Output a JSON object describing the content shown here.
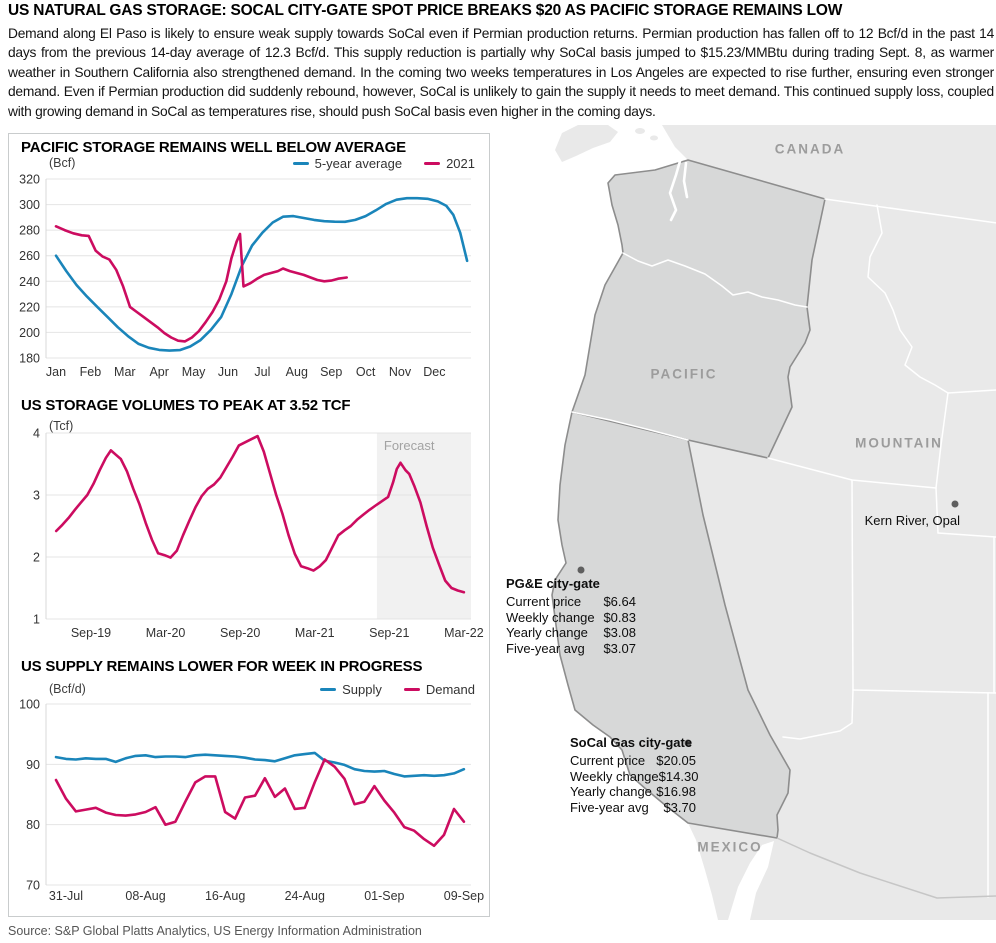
{
  "header": {
    "title": "US NATURAL GAS STORAGE: SOCAL CITY-GATE SPOT PRICE BREAKS $20 AS PACIFIC STORAGE REMAINS LOW",
    "paragraph": "Demand along El Paso is likely to ensure weak supply towards SoCal even if Permian production returns. Permian production has fallen off to 12 Bcf/d in the past 14 days from the previous 14-day average of 12.3 Bcf/d. This supply reduction is partially why SoCal basis jumped to $15.23/MMBtu during trading Sept. 8, as warmer weather in Southern California also strengthened demand. In the coming two weeks temperatures in Los Angeles are expected to rise further, ensuring even stronger demand. Even if Permian production did suddenly rebound, however, SoCal is unlikely to gain the supply it needs to meet demand. This continued supply loss, coupled with growing demand in SoCal as temperatures rise, should push SoCal basis even higher in the coming days."
  },
  "source": "Source: S&P Global Platts Analytics, US Energy Information Administration",
  "colors": {
    "supply_blue": "#1a85ba",
    "demand_pink": "#cc0c60",
    "forecast_bg": "#f1f1f1",
    "grid": "#e4e4e4",
    "axis": "#d8d8d8"
  },
  "chart_data": {
    "pacific": {
      "type": "line",
      "title": "PACIFIC STORAGE REMAINS WELL BELOW AVERAGE",
      "ylabel": "(Bcf)",
      "ylim": [
        180,
        320
      ],
      "y_ticks": [
        320,
        300,
        280,
        260,
        240,
        220,
        200,
        180
      ],
      "x_ticks": [
        "Jan",
        "Feb",
        "Mar",
        "Apr",
        "May",
        "Jun",
        "Jul",
        "Aug",
        "Sep",
        "Oct",
        "Nov",
        "Dec"
      ],
      "legend": [
        {
          "label": "5-year average",
          "color": "supply_blue"
        },
        {
          "label": "2021",
          "color": "demand_pink"
        }
      ],
      "series": [
        {
          "name": "5-year average",
          "color": "supply_blue",
          "points": [
            [
              0,
              260
            ],
            [
              0.3,
              248
            ],
            [
              0.6,
              237
            ],
            [
              0.9,
              228
            ],
            [
              1.2,
              220
            ],
            [
              1.5,
              212
            ],
            [
              1.8,
              204
            ],
            [
              2.1,
              197
            ],
            [
              2.4,
              191
            ],
            [
              2.7,
              188
            ],
            [
              3,
              186.3
            ],
            [
              3.3,
              185.8
            ],
            [
              3.6,
              186.2
            ],
            [
              3.9,
              189
            ],
            [
              4.2,
              194
            ],
            [
              4.5,
              202
            ],
            [
              4.8,
              212
            ],
            [
              5.1,
              230
            ],
            [
              5.4,
              252
            ],
            [
              5.7,
              268
            ],
            [
              6,
              278
            ],
            [
              6.3,
              286
            ],
            [
              6.6,
              290.5
            ],
            [
              6.9,
              291
            ],
            [
              7.2,
              289.5
            ],
            [
              7.5,
              288
            ],
            [
              7.8,
              287
            ],
            [
              8.1,
              286.6
            ],
            [
              8.4,
              286.5
            ],
            [
              8.7,
              288
            ],
            [
              9,
              291
            ],
            [
              9.3,
              295.5
            ],
            [
              9.6,
              300.5
            ],
            [
              9.9,
              303.8
            ],
            [
              10.2,
              305
            ],
            [
              10.5,
              305
            ],
            [
              10.8,
              304.5
            ],
            [
              11.1,
              302.5
            ],
            [
              11.35,
              299
            ],
            [
              11.55,
              292
            ],
            [
              11.75,
              278
            ],
            [
              11.95,
              256
            ]
          ]
        },
        {
          "name": "2021",
          "color": "demand_pink",
          "points": [
            [
              0,
              283
            ],
            [
              0.25,
              280
            ],
            [
              0.5,
              277.5
            ],
            [
              0.75,
              276
            ],
            [
              0.95,
              275.5
            ],
            [
              1.15,
              264
            ],
            [
              1.35,
              259.5
            ],
            [
              1.55,
              257
            ],
            [
              1.75,
              249
            ],
            [
              1.95,
              236
            ],
            [
              2.15,
              220
            ],
            [
              2.35,
              216
            ],
            [
              2.55,
              212
            ],
            [
              2.75,
              208
            ],
            [
              2.95,
              204
            ],
            [
              3.15,
              199.5
            ],
            [
              3.35,
              196
            ],
            [
              3.55,
              193.5
            ],
            [
              3.75,
              193
            ],
            [
              3.95,
              196
            ],
            [
              4.15,
              201
            ],
            [
              4.35,
              208
            ],
            [
              4.55,
              216
            ],
            [
              4.75,
              226
            ],
            [
              4.95,
              240
            ],
            [
              5.1,
              258
            ],
            [
              5.25,
              271
            ],
            [
              5.35,
              277
            ],
            [
              5.45,
              236
            ],
            [
              5.65,
              238.5
            ],
            [
              5.85,
              242
            ],
            [
              6.05,
              245
            ],
            [
              6.25,
              246.5
            ],
            [
              6.45,
              248
            ],
            [
              6.6,
              250
            ],
            [
              6.8,
              248
            ],
            [
              7,
              246.5
            ],
            [
              7.2,
              245
            ],
            [
              7.4,
              243
            ],
            [
              7.6,
              241
            ],
            [
              7.8,
              240
            ],
            [
              8,
              240.5
            ],
            [
              8.2,
              242
            ],
            [
              8.45,
              243
            ]
          ]
        }
      ]
    },
    "us_storage": {
      "type": "line",
      "title": "US STORAGE VOLUMES TO PEAK AT 3.52 TCF",
      "ylabel": "(Tcf)",
      "ylim": [
        1,
        4
      ],
      "y_ticks": [
        4,
        3,
        2,
        1
      ],
      "x_ticks": [
        "Sep-19",
        "Mar-20",
        "Sep-20",
        "Mar-21",
        "Sep-21",
        "Mar-22"
      ],
      "forecast_label": "Forecast",
      "series": [
        {
          "name": "US storage volume",
          "color": "demand_pink",
          "points": [
            [
              0.2,
              2.42
            ],
            [
              0.7,
              2.52
            ],
            [
              1.2,
              2.63
            ],
            [
              1.7,
              2.76
            ],
            [
              2.2,
              2.88
            ],
            [
              2.7,
              3.0
            ],
            [
              3.2,
              3.18
            ],
            [
              3.7,
              3.4
            ],
            [
              4.2,
              3.6
            ],
            [
              4.6,
              3.72
            ],
            [
              5,
              3.65
            ],
            [
              5.4,
              3.58
            ],
            [
              5.9,
              3.38
            ],
            [
              6.4,
              3.1
            ],
            [
              6.9,
              2.85
            ],
            [
              7.4,
              2.55
            ],
            [
              7.9,
              2.28
            ],
            [
              8.4,
              2.06
            ],
            [
              8.9,
              2.03
            ],
            [
              9.4,
              1.99
            ],
            [
              9.9,
              2.1
            ],
            [
              10.4,
              2.35
            ],
            [
              10.9,
              2.58
            ],
            [
              11.4,
              2.8
            ],
            [
              11.9,
              2.98
            ],
            [
              12.4,
              3.1
            ],
            [
              12.9,
              3.17
            ],
            [
              13.4,
              3.28
            ],
            [
              13.9,
              3.45
            ],
            [
              14.4,
              3.62
            ],
            [
              14.9,
              3.8
            ],
            [
              15.4,
              3.85
            ],
            [
              15.9,
              3.9
            ],
            [
              16.4,
              3.95
            ],
            [
              16.9,
              3.7
            ],
            [
              17.4,
              3.35
            ],
            [
              17.9,
              3.0
            ],
            [
              18.4,
              2.7
            ],
            [
              18.9,
              2.35
            ],
            [
              19.4,
              2.05
            ],
            [
              19.9,
              1.85
            ],
            [
              20.4,
              1.82
            ],
            [
              20.9,
              1.78
            ],
            [
              21.4,
              1.85
            ],
            [
              21.9,
              1.95
            ],
            [
              22.4,
              2.15
            ],
            [
              22.9,
              2.35
            ],
            [
              23.4,
              2.43
            ],
            [
              23.9,
              2.5
            ],
            [
              24.4,
              2.6
            ],
            [
              24.9,
              2.68
            ],
            [
              25.4,
              2.76
            ],
            [
              25.9,
              2.83
            ],
            [
              26.4,
              2.9
            ],
            [
              26.9,
              2.97
            ],
            [
              27.3,
              3.2
            ],
            [
              27.6,
              3.42
            ],
            [
              27.9,
              3.52
            ],
            [
              28.3,
              3.4
            ],
            [
              28.6,
              3.34
            ],
            [
              29,
              3.15
            ],
            [
              29.5,
              2.88
            ],
            [
              30,
              2.5
            ],
            [
              30.5,
              2.15
            ],
            [
              31,
              1.88
            ],
            [
              31.5,
              1.62
            ],
            [
              32,
              1.5
            ],
            [
              32.5,
              1.46
            ],
            [
              33,
              1.43
            ]
          ]
        }
      ]
    },
    "supply": {
      "type": "line",
      "title": "US SUPPLY REMAINS LOWER FOR WEEK IN PROGRESS",
      "ylabel": "(Bcf/d)",
      "ylim": [
        70,
        100
      ],
      "y_ticks": [
        100,
        90,
        80,
        70
      ],
      "x_ticks": [
        "31-Jul",
        "08-Aug",
        "16-Aug",
        "24-Aug",
        "01-Sep",
        "09-Sep"
      ],
      "legend": [
        {
          "label": "Supply",
          "color": "supply_blue"
        },
        {
          "label": "Demand",
          "color": "demand_pink"
        }
      ],
      "series": [
        {
          "name": "Supply",
          "color": "supply_blue",
          "x_start": 0,
          "x_step": 1,
          "values": [
            91.2,
            90.9,
            90.8,
            91.0,
            90.9,
            90.9,
            90.4,
            91.0,
            91.4,
            91.5,
            91.2,
            91.3,
            91.3,
            91.2,
            91.5,
            91.6,
            91.5,
            91.4,
            91.3,
            91.1,
            90.8,
            90.7,
            90.5,
            91.0,
            91.5,
            91.7,
            91.9,
            90.6,
            90.3,
            89.9,
            89.2,
            88.9,
            88.8,
            88.9,
            88.4,
            88.0,
            88.1,
            88.2,
            88.1,
            88.2,
            88.5,
            89.2
          ]
        },
        {
          "name": "Demand",
          "color": "demand_pink",
          "x_start": 0,
          "x_step": 1,
          "values": [
            87.4,
            84.3,
            82.2,
            82.5,
            82.8,
            82.0,
            81.6,
            81.5,
            81.7,
            82.1,
            82.9,
            80.0,
            80.5,
            83.8,
            87.0,
            88.0,
            88.0,
            82.1,
            81.0,
            84.5,
            84.8,
            87.7,
            84.6,
            86.0,
            82.6,
            82.8,
            87.0,
            90.8,
            89.6,
            87.6,
            83.4,
            83.8,
            86.4,
            84.0,
            82.0,
            79.6,
            79.0,
            77.6,
            76.5,
            78.3,
            82.6,
            80.5
          ]
        }
      ]
    }
  },
  "map": {
    "regions": {
      "canada": "CANADA",
      "pacific": "PACIFIC",
      "mountain": "MOUNTAIN",
      "mexico": "MEXICO"
    },
    "markers": {
      "kern": "Kern River, Opal"
    },
    "callouts": [
      {
        "title": "PG&E city-gate",
        "rows": [
          {
            "label": "Current price",
            "value": "$6.64"
          },
          {
            "label": "Weekly change",
            "value": "$0.83"
          },
          {
            "label": "Yearly change",
            "value": "$3.08"
          },
          {
            "label": "Five-year avg",
            "value": "$3.07"
          }
        ]
      },
      {
        "title": "SoCal Gas city-gate",
        "rows": [
          {
            "label": "Current price",
            "value": "$20.05"
          },
          {
            "label": "Weekly change",
            "value": "$14.30"
          },
          {
            "label": "Yearly change",
            "value": "$16.98"
          },
          {
            "label": "Five-year avg",
            "value": "$3.70"
          }
        ]
      }
    ]
  }
}
